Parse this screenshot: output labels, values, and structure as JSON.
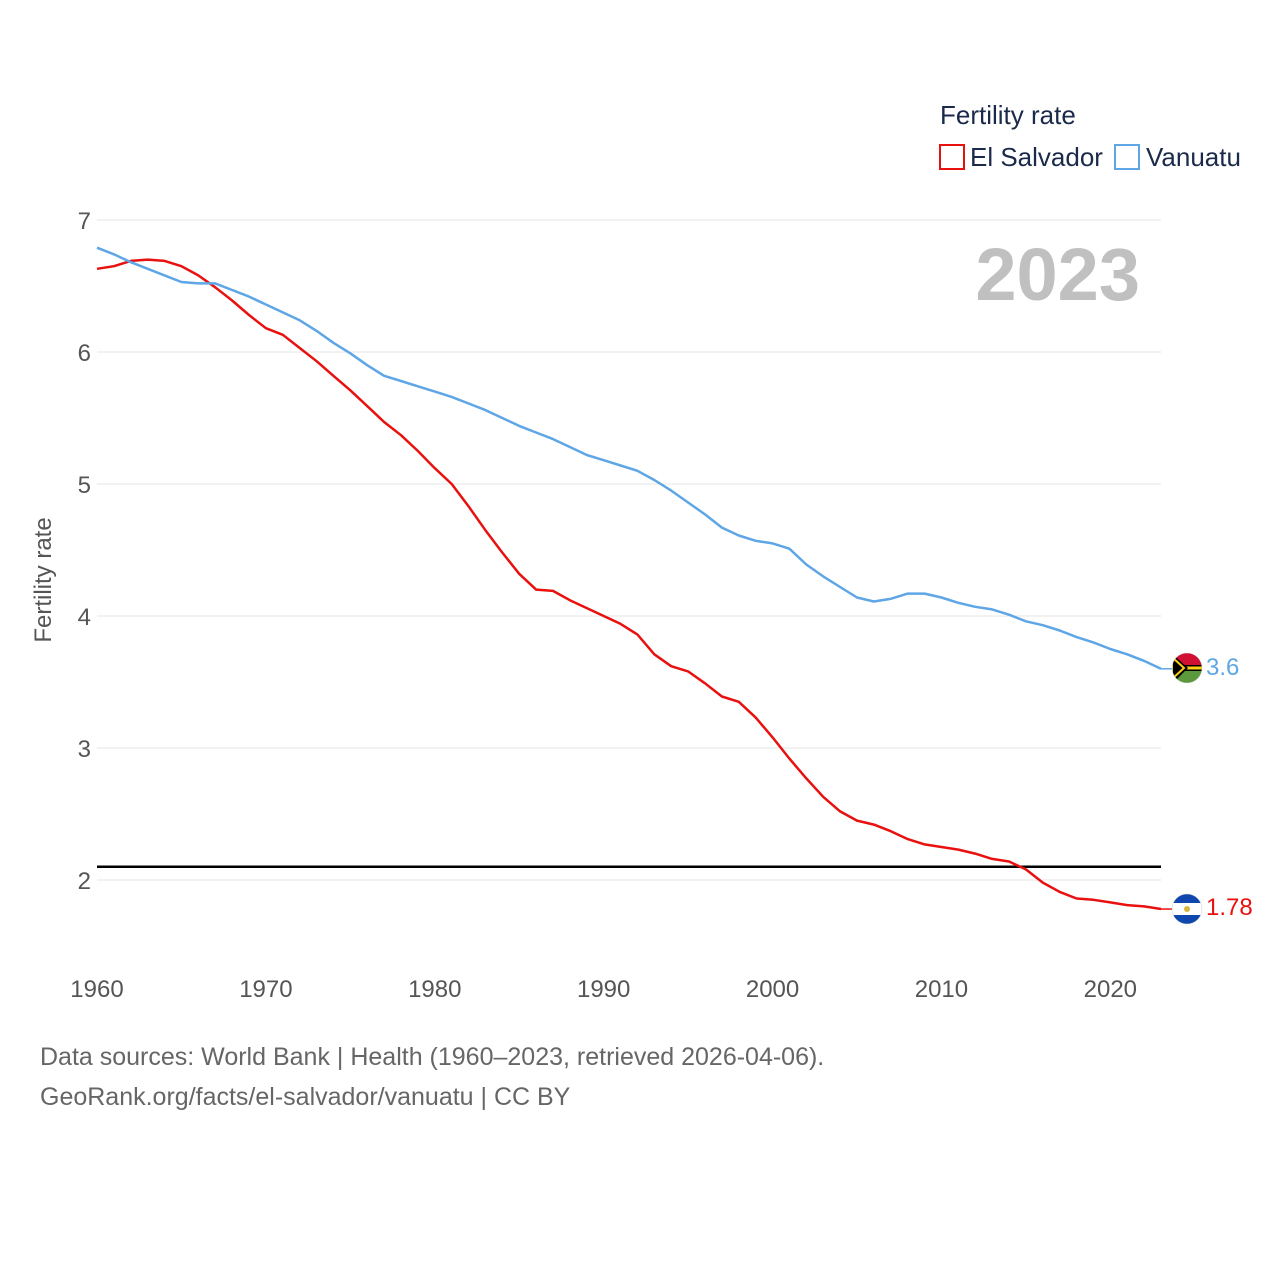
{
  "chart_data": {
    "type": "line",
    "title": "",
    "ylabel": "Fertility rate",
    "xlabel": "",
    "xlim": [
      1960,
      2023
    ],
    "ylim": [
      1.5,
      7
    ],
    "yticks": [
      2,
      3,
      4,
      5,
      6,
      7
    ],
    "xticks": [
      1960,
      1970,
      1980,
      1990,
      2000,
      2010,
      2020
    ],
    "year_label": "2023",
    "reference_line": 2.1,
    "legend": {
      "title": "Fertility rate",
      "position": "top-right"
    },
    "x": [
      1960,
      1961,
      1962,
      1963,
      1964,
      1965,
      1966,
      1967,
      1968,
      1969,
      1970,
      1971,
      1972,
      1973,
      1974,
      1975,
      1976,
      1977,
      1978,
      1979,
      1980,
      1981,
      1982,
      1983,
      1984,
      1985,
      1986,
      1987,
      1988,
      1989,
      1990,
      1991,
      1992,
      1993,
      1994,
      1995,
      1996,
      1997,
      1998,
      1999,
      2000,
      2001,
      2002,
      2003,
      2004,
      2005,
      2006,
      2007,
      2008,
      2009,
      2010,
      2011,
      2012,
      2013,
      2014,
      2015,
      2016,
      2017,
      2018,
      2019,
      2020,
      2021,
      2022,
      2023
    ],
    "series": [
      {
        "name": "El Salvador",
        "color": "#e8110f",
        "end_label": "1.78",
        "values": [
          6.63,
          6.65,
          6.69,
          6.7,
          6.69,
          6.65,
          6.58,
          6.49,
          6.39,
          6.28,
          6.18,
          6.13,
          6.03,
          5.93,
          5.82,
          5.71,
          5.59,
          5.47,
          5.37,
          5.25,
          5.12,
          5.0,
          4.83,
          4.65,
          4.48,
          4.32,
          4.2,
          4.19,
          4.12,
          4.06,
          4.0,
          3.94,
          3.86,
          3.71,
          3.62,
          3.58,
          3.49,
          3.39,
          3.35,
          3.23,
          3.08,
          2.92,
          2.77,
          2.63,
          2.52,
          2.45,
          2.42,
          2.37,
          2.31,
          2.27,
          2.25,
          2.23,
          2.2,
          2.16,
          2.14,
          2.08,
          1.98,
          1.91,
          1.86,
          1.85,
          1.83,
          1.81,
          1.8,
          1.78
        ]
      },
      {
        "name": "Vanuatu",
        "color": "#5ea6e5",
        "end_label": "3.6",
        "values": [
          6.79,
          6.74,
          6.68,
          6.63,
          6.58,
          6.53,
          6.52,
          6.52,
          6.47,
          6.42,
          6.36,
          6.3,
          6.24,
          6.16,
          6.07,
          5.99,
          5.9,
          5.82,
          5.78,
          5.74,
          5.7,
          5.66,
          5.61,
          5.56,
          5.5,
          5.44,
          5.39,
          5.34,
          5.28,
          5.22,
          5.18,
          5.14,
          5.1,
          5.03,
          4.95,
          4.86,
          4.77,
          4.67,
          4.61,
          4.57,
          4.55,
          4.51,
          4.39,
          4.3,
          4.22,
          4.14,
          4.11,
          4.13,
          4.17,
          4.17,
          4.14,
          4.1,
          4.07,
          4.05,
          4.01,
          3.96,
          3.93,
          3.89,
          3.84,
          3.8,
          3.75,
          3.71,
          3.66,
          3.6
        ]
      }
    ]
  },
  "footer": {
    "line1": "Data sources: World Bank | Health (1960–2023, retrieved 2026-04-06).",
    "line2": "GeoRank.org/facts/el-salvador/vanuatu | CC BY"
  }
}
